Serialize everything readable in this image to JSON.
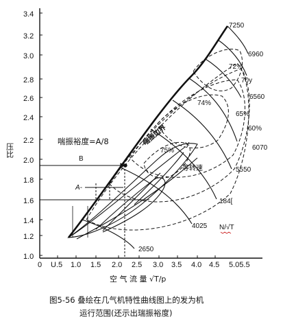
{
  "axes": {
    "y_label": "压比",
    "x_label": "空 气 流 量   √T/p",
    "y_ticks": [
      "1.0",
      "1.2",
      "1.4",
      "1.6",
      "1.8",
      "2.0",
      "2.2",
      "2.4",
      "2.6",
      "2.8",
      "3.0",
      "3.2",
      "3.4"
    ],
    "x_ticks": [
      "0",
      "U.5",
      "1.0",
      "1.5",
      "2.0",
      "2.5",
      "3.0",
      "3.5",
      "4.0",
      "4.5",
      "5.05.5"
    ]
  },
  "curves": {
    "surge_line_label": "喘振边界",
    "speed_labels": [
      "7250",
      "6960",
      "70y",
      "6560",
      "6070",
      "5550",
      "184[",
      "4025",
      "2650"
    ],
    "efficiency_labels": [
      "72%",
      "74%",
      "65%",
      "60%",
      "75%"
    ],
    "corrected_speed_label": "N/√T",
    "equal_speed_label": "等转速",
    "y_marker": "Y"
  },
  "annotations": {
    "surge_margin_formula": "喘振裕度=A/8",
    "b_label": "B",
    "a_label": "A-"
  },
  "caption": {
    "line1": "图5-56  叠绘在几气机特性曲线图上的发为机",
    "line2": "运行范围(还示出瑞振裕度)"
  }
}
